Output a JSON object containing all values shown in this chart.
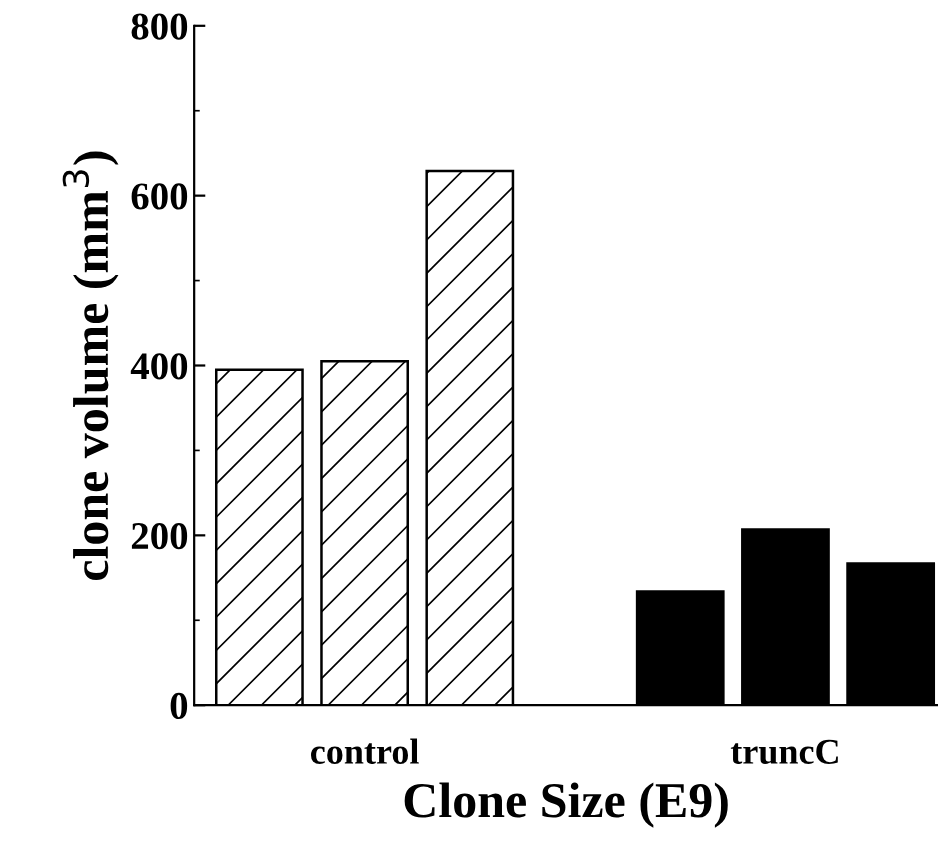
{
  "chart_data": {
    "type": "bar",
    "xlabel": "Clone Size (E9)",
    "ylabel": "clone volume (mm$^{3}$)",
    "categories": [
      null,
      "control",
      null,
      null,
      null,
      "truncC",
      null
    ],
    "series": [
      {
        "color": "#ffffff",
        "values": [
          395,
          405,
          629,
          null,
          null,
          null,
          null
        ]
      },
      {
        "color": "#000000",
        "values": [
          null,
          null,
          null,
          null,
          134,
          207,
          167
        ]
      }
    ],
    "ylim": [
      0,
      800
    ],
    "yticks": [
      0,
      200,
      400,
      600,
      800
    ],
    "grid": false,
    "legend": false
  }
}
